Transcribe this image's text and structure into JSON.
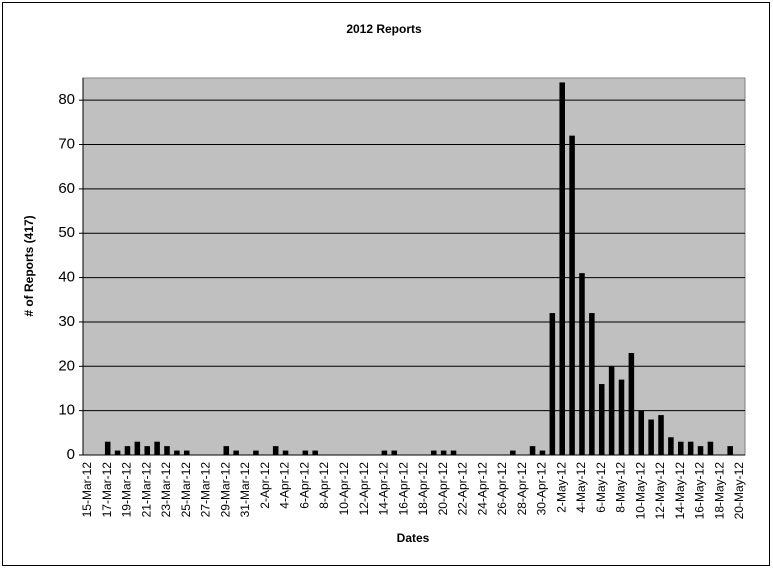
{
  "chart_data": {
    "type": "bar",
    "title": "2012 Reports",
    "x_label": "Dates",
    "y_label": "# of Reports (417)",
    "categories": [
      "15-Mar-12",
      null,
      "17-Mar-12",
      null,
      "19-Mar-12",
      null,
      "21-Mar-12",
      null,
      "23-Mar-12",
      null,
      "25-Mar-12",
      null,
      "27-Mar-12",
      null,
      "29-Mar-12",
      null,
      "31-Mar-12",
      null,
      "2-Apr-12",
      null,
      "4-Apr-12",
      null,
      "6-Apr-12",
      null,
      "8-Apr-12",
      null,
      "10-Apr-12",
      null,
      "12-Apr-12",
      null,
      "14-Apr-12",
      null,
      "16-Apr-12",
      null,
      "18-Apr-12",
      null,
      "20-Apr-12",
      null,
      "22-Apr-12",
      null,
      "24-Apr-12",
      null,
      "26-Apr-12",
      null,
      "28-Apr-12",
      null,
      "30-Apr-12",
      null,
      "2-May-12",
      null,
      "4-May-12",
      null,
      "6-May-12",
      null,
      "8-May-12",
      null,
      "10-May-12",
      null,
      "12-May-12",
      null,
      "14-May-12",
      null,
      "16-May-12",
      null,
      "18-May-12",
      null,
      "20-May-12"
    ],
    "values": [
      0,
      0,
      3,
      1,
      2,
      3,
      2,
      3,
      2,
      1,
      1,
      0,
      0,
      0,
      2,
      1,
      0,
      1,
      0,
      2,
      1,
      0,
      1,
      1,
      0,
      0,
      0,
      0,
      0,
      0,
      1,
      1,
      0,
      0,
      0,
      1,
      1,
      1,
      0,
      0,
      0,
      0,
      0,
      1,
      0,
      2,
      1,
      32,
      84,
      72,
      41,
      32,
      16,
      20,
      17,
      23,
      10,
      8,
      9,
      4,
      3,
      3,
      2,
      3,
      0,
      2,
      0
    ],
    "color": "#000000",
    "plot_background": "#c0c0c0",
    "ylim": [
      0,
      85
    ],
    "yticks": [
      0,
      10,
      20,
      30,
      40,
      50,
      60,
      70,
      80
    ],
    "grid": true
  }
}
